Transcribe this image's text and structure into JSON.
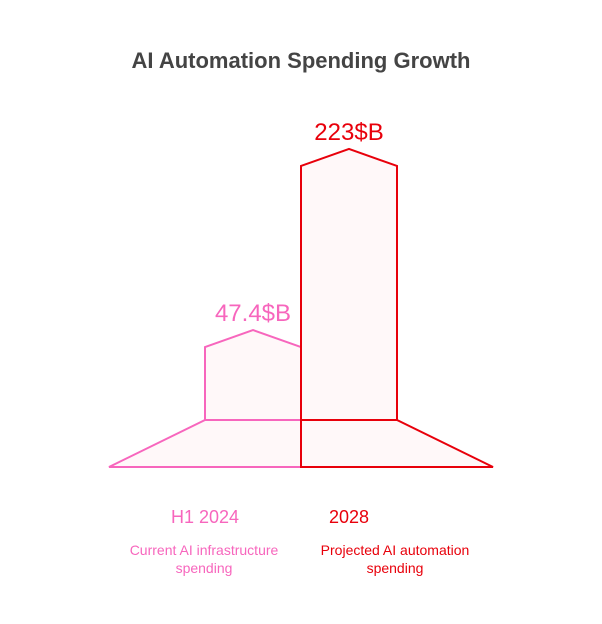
{
  "chart_data": {
    "type": "bar",
    "title": "AI Automation Spending Growth",
    "categories": [
      "H1 2024",
      "2028"
    ],
    "descriptions": [
      "Current AI infrastructure spending",
      "Projected AI automation spending"
    ],
    "values": [
      47.4,
      223
    ],
    "value_labels": [
      "47.4$B",
      "223$B"
    ],
    "unit": "$B",
    "colors": [
      "#f766bd",
      "#e8000b"
    ],
    "fill": "#fff8f9"
  }
}
